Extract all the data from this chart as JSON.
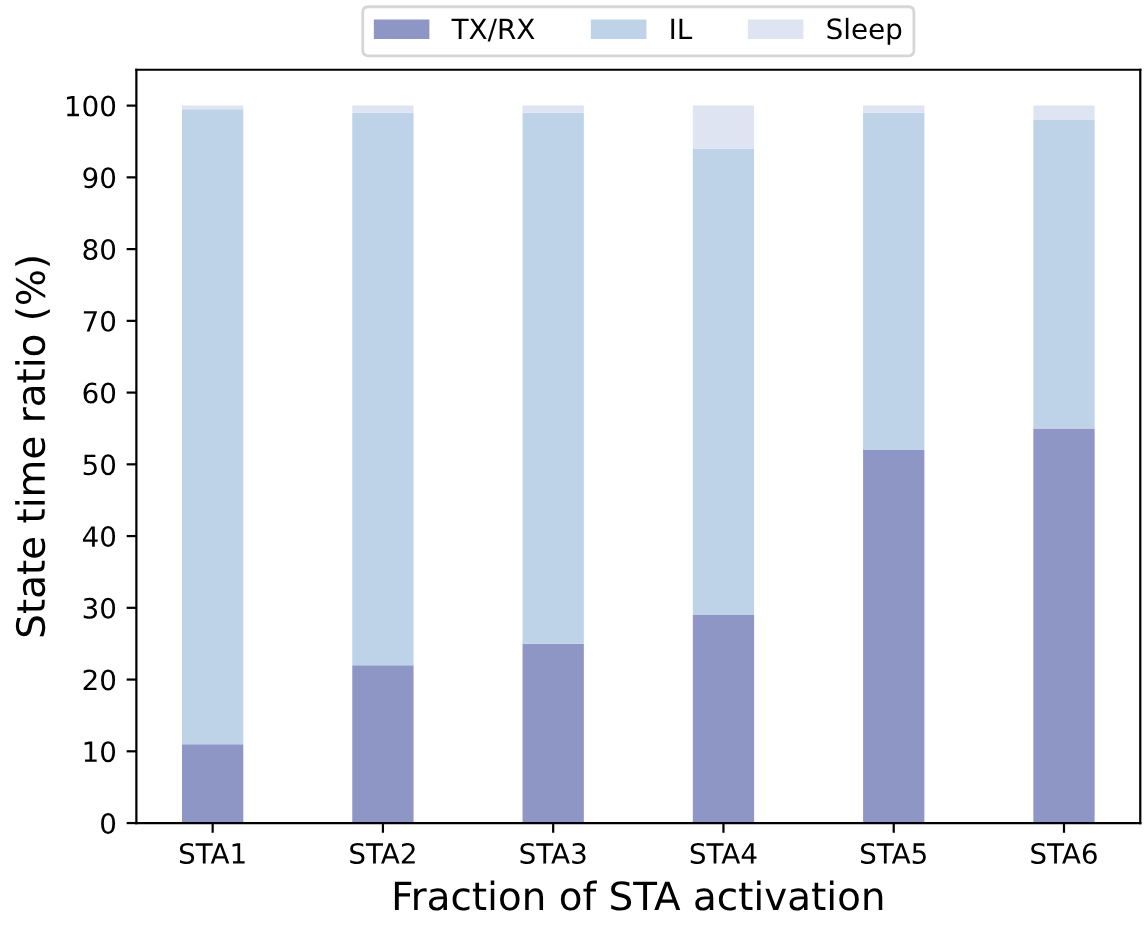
{
  "chart_data": {
    "type": "bar",
    "stacked": true,
    "xlabel": "Fraction of STA activation",
    "ylabel": "State time ratio (%)",
    "categories": [
      "STA1",
      "STA2",
      "STA3",
      "STA4",
      "STA5",
      "STA6"
    ],
    "series": [
      {
        "name": "TX/RX",
        "color": "#8e96c6",
        "values": [
          11,
          22,
          25,
          29,
          52,
          55
        ]
      },
      {
        "name": "IL",
        "color": "#bed3e7",
        "values": [
          88.5,
          77,
          74,
          65,
          47,
          43
        ]
      },
      {
        "name": "Sleep",
        "color": "#dfe4f2",
        "values": [
          0.5,
          1,
          1,
          6,
          1,
          2
        ]
      }
    ],
    "ylim": [
      0,
      105
    ],
    "yticks": [
      0,
      10,
      20,
      30,
      40,
      50,
      60,
      70,
      80,
      90,
      100
    ],
    "grid": false,
    "legend": "top"
  }
}
